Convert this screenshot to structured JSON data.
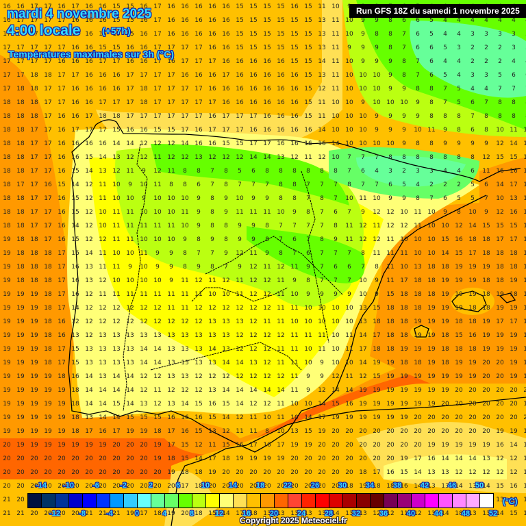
{
  "header": {
    "date": "mardi 4 novembre 2025",
    "time": "4:00 locale",
    "lead": "(+57h)",
    "variable": "Températures maximales sur 3h (°C)",
    "run": "Run GFS 18Z du samedi 1 novembre 2025"
  },
  "footer": {
    "copyright": "Copyright 2025 Meteociel.fr",
    "unit": "(°C)"
  },
  "colorbar": {
    "colors": [
      "#001040",
      "#003366",
      "#003399",
      "#0000cc",
      "#0000ff",
      "#0033ff",
      "#0099ff",
      "#33ccff",
      "#66ffff",
      "#66ff99",
      "#66ff66",
      "#66ff00",
      "#bbff11",
      "#ffff00",
      "#ffff77",
      "#ffe055",
      "#ffc000",
      "#ff9900",
      "#ff6600",
      "#ff4433",
      "#ff2200",
      "#ff0000",
      "#dd0000",
      "#aa0000",
      "#880000",
      "#660000",
      "#770055",
      "#990077",
      "#cc00cc",
      "#ff00ff",
      "#ff55ff",
      "#ff88ff",
      "#ffaaff",
      "#ffffff"
    ],
    "ticks_top": [
      "-14",
      "-10",
      "-6",
      "-2",
      "2",
      "6",
      "10",
      "14",
      "18",
      "22",
      "26",
      "30",
      "34",
      "38",
      "42",
      "46",
      "50"
    ],
    "ticks_bottom": [
      "-12",
      "-8",
      "-4",
      "0",
      "4",
      "8",
      "12",
      "16",
      "20",
      "24",
      "28",
      "32",
      "36",
      "40",
      "44",
      "48",
      "52"
    ]
  },
  "map": {
    "region": "Péninsule Ibérique / Baléares",
    "grid_origin": [
      5,
      3
    ],
    "grid_step": [
      20,
      20
    ],
    "values": [
      "16 16 17 17 16 17 16 16 15 15 16 17 16 16 16 16 16 15 15 15 15 16 15 11 10 9 8 8 7 6 5 4 4 4 4 4 4 4 4",
      "16 17 17 17 17 16 16 16 15 15 16 17 16 16 16 16 16 15 15 15 15 15 15 13 11 10 9 9 8 6 6 5 4 4 4 4 4 4 4",
      "17 17 17 17 17 16 16 16 15 15 16 17 16 16 16 16 16 15 15 15 15 15 15 13 11 10 9 8 8 7 6 5 4 4 3 3 3 3 3",
      "17 17 17 17 17 16 16 15 15 16 16 17 17 17 17 16 16 15 15 15 15 15 15 13 11 9 9 9 8 7 6 6 5 3 2 2 2 3 3",
      "17 17 17 17 16 16 16 17 17 16 16 17 16 17 17 17 16 16 16 16 16 15 15 14 11 10 9 9 9 8 7 6 4 4 2 2 2 4 4",
      "17 17 18 18 17 17 16 16 16 17 17 17 17 16 16 16 17 16 16 16 16 16 15 13 11 10 10 10 9 8 7 6 5 4 3 3 5 6 6",
      "17 18 18 17 17 16 16 16 16 17 18 17 17 17 17 16 16 16 16 16 16 16 15 12 11 10 10 10 9 9 8 8 7 5 4 4 7 7 7",
      "18 18 18 17 17 16 16 17 17 17 18 17 17 17 17 17 16 16 16 16 16 16 15 11 10 10 9 10 10 10 9 8 7 5 6 7 8 8 8",
      "18 18 18 17 16 16 17 18 18 17 17 17 17 17 17 16 17 17 17 16 16 16 15 11 10 10 10 9 9 9 9 8 8 8 7 8 8 8 8",
      "18 18 17 17 16 17 17 17 15 16 16 15 15 17 16 17 17 17 16 16 16 16 16 14 10 10 10 9 9 9 10 11 9 8 6 8 10 11 11",
      "18 18 17 17 16 16 16 16 14 14 12 12 12 14 16 16 15 15 17 17 16 16 16 16 14 10 10 10 10 9 8 8 9 9 9 9 12 14 14",
      "18 18 17 17 16 16 15 14 13 12 12 11 12 12 13 12 12 12 14 14 13 12 11 12 10 7 7 7 8 8 8 8 8 8 8 12 15 15 15",
      "18 18 17 17 16 15 14 13 12 11 9 12 11 8 8 7 8 5 6 8 8 8 8 8 8 7 6 4 3 2 3 3 4 4 6 11 16 16 15",
      "18 17 17 16 15 14 12 11 10 9 10 11 8 8 6 7 8 7 7 7 8 8 7 7 7 8 7 7 6 5 4 2 2 2 5 6 14 17 16",
      "18 18 17 17 16 15 12 11 10 10 9 10 10 10 9 8 9 10 9 9 8 8 7 8 7 10 11 10 9 9 8 7 6 5 5 7 10 13 17",
      "18 18 17 17 16 15 12 10 11 11 10 10 10 11 9 8 9 11 11 11 10 9 8 7 6 7 9 12 12 10 11 10 9 8 10 9 12 16 17",
      "18 18 17 17 16 14 12 10 11 11 11 11 11 10 9 8 8 9 9 8 7 7 7 7 8 11 12 11 12 12 11 10 10 12 14 15 15 15 16",
      "19 18 18 17 16 15 12 12 11 11 10 10 10 9 8 9 8 9 9 8 7 6 7 8 9 11 12 12 11 10 10 10 15 16 18 18 17 17 17",
      "19 18 18 18 17 16 14 11 10 10 11 9 9 8 7 7 9 12 11 9 8 7 6 7 7 7 8 11 11 11 10 10 14 15 17 18 18 18 17",
      "19 18 18 18 17 16 13 11 11 9 10 9 9 8 9 8 7 9 12 11 12 11 9 7 6 6 7 8 11 10 13 18 18 19 19 19 18 18 17",
      "19 18 18 18 17 16 13 12 10 10 10 10 9 11 12 11 12 11 12 12 11 9 8 7 7 7 10 9 11 17 18 18 19 19 19 18 18 19 18",
      "19 19 19 18 17 16 12 11 11 11 11 11 11 11 11 10 10 11 12 12 11 10 9 9 9 9 10 9 15 18 18 18 19 19 19 18 19 18 17",
      "19 19 19 18 17 14 12 12 12 12 12 12 11 11 12 12 12 12 12 12 11 11 10 10 10 10 13 15 18 18 18 19 19 19 18 18 19 19 17",
      "19 19 19 18 16 12 12 12 12 12 12 12 12 12 12 13 13 13 12 11 11 10 10 10 10 10 13 18 18 18 19 19 19 18 18 19 17 17 17",
      "19 19 19 18 16 13 12 13 13 13 13 13 13 13 13 13 13 12 12 12 12 11 11 11 10 11 14 17 18 18 19 19 18 15 16 19 19 19 18",
      "19 19 19 18 17 15 13 13 13 13 14 14 13 13 13 14 13 12 12 12 11 11 10 11 10 11 17 18 18 19 19 19 18 18 18 19 19 19 19",
      "19 19 19 18 17 15 13 13 13 13 14 14 13 13 13 13 14 14 13 12 11 11 10 9 10 10 14 19 19 18 18 19 18 19 19 20 20 19 19",
      "19 19 19 19 18 16 14 13 14 14 12 12 13 13 12 12 12 12 12 12 12 11 9 9 12 11 12 15 19 19 19 19 19 19 19 20 20 19 19",
      "19 19 19 19 19 18 14 14 14 14 12 11 12 12 12 13 14 14 14 14 14 11 9 12 14 14 19 19 19 19 19 19 19 20 20 20 20 20 20",
      "19 19 19 19 19 18 14 14 15 14 13 12 13 14 15 16 15 14 12 12 11 10 10 14 15 16 19 19 19 19 19 19 20 20 20 20 20 20 19",
      "19 19 19 19 19 18 13 14 14 15 15 15 16 16 16 15 14 12 11 10 11 10 14 17 19 19 19 19 19 19 20 20 20 20 20 20 20 20 20",
      "19 19 19 19 19 18 17 16 17 19 19 18 17 16 15 13 12 11 11 8 10 13 15 19 20 20 20 20 20 20 20 20 20 20 20 20 19 19 19",
      "20 19 19 19 19 19 19 19 20 20 20 19 17 15 12 11 15 16 17 16 17 19 19 20 20 20 20 20 20 20 20 19 19 19 19 19 16 14 12",
      "20 20 20 20 20 20 20 20 20 20 20 19 18 15 14 17 18 19 19 19 19 20 20 20 20 20 20 20 20 19 17 16 14 14 14 13 12 12 12",
      "20 20 20 20 20 20 20 20 20 20 20 20 19 18 18 19 20 20 20 20 20 20 20 20 20 20 18 17 16 15 14 13 13 12 12 12 12 12 12",
      "20 20 20 20 20 20 20 20 20 20 20 20 20 17 18 20 20 20 20 20 20 20 20 20 20 18 19 18 18 16 14 13 13 14 13 14 15 16 16",
      "21 20 20 20 20 20 21 21 21 20 18 18 16 14 13 13 14 15 16 14 15 15 13 13 13 12 13 13 13 13 14 13 13 12 13 12 13 13 15",
      "21 21 20 20 20 20 21 21 21 19 17 18 19 20 18 15 14 17 18 13 13 13 13 13 14 13 13 12 12 11 12 13 14 18 13 13 14 15 18"
    ]
  }
}
